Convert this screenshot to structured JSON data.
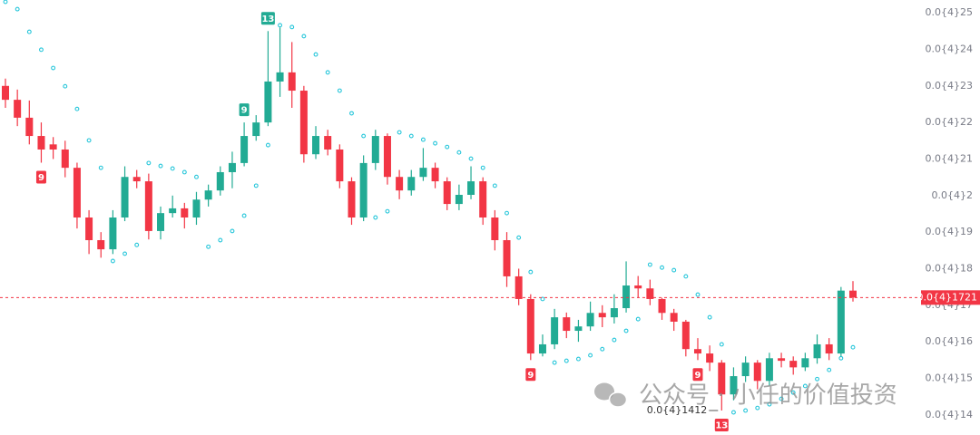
{
  "chart_data": {
    "type": "candlestick",
    "up_color": "#22ab94",
    "down_color": "#f23645",
    "sar_color": "#26c6da",
    "ylim": [
      1.345e-05,
      2.535e-05
    ],
    "yticks": [
      {
        "value": 2.5e-05,
        "label": "0.0{4}25"
      },
      {
        "value": 2.4e-05,
        "label": "0.0{4}24"
      },
      {
        "value": 2.3e-05,
        "label": "0.0{4}23"
      },
      {
        "value": 2.2e-05,
        "label": "0.0{4}22"
      },
      {
        "value": 2.1e-05,
        "label": "0.0{4}21"
      },
      {
        "value": 2e-05,
        "label": "0.0{4}2"
      },
      {
        "value": 1.9e-05,
        "label": "0.0{4}19"
      },
      {
        "value": 1.8e-05,
        "label": "0.0{4}18"
      },
      {
        "value": 1.7e-05,
        "label": "0.0{4}17"
      },
      {
        "value": 1.6e-05,
        "label": "0.0{4}16"
      },
      {
        "value": 1.5e-05,
        "label": "0.0{4}15"
      },
      {
        "value": 1.4e-05,
        "label": "0.0{4}14"
      }
    ],
    "ohlc": [
      [
        2.3e-05,
        2.32e-05,
        2.24e-05,
        2.262e-05
      ],
      [
        2.262e-05,
        2.29e-05,
        2.19e-05,
        2.213e-05
      ],
      [
        2.213e-05,
        2.26e-05,
        2.14e-05,
        2.163e-05
      ],
      [
        2.163e-05,
        2.2e-05,
        2.09e-05,
        2.126e-05
      ],
      [
        2.14e-05,
        2.16e-05,
        2.1e-05,
        2.126e-05
      ],
      [
        2.126e-05,
        2.15e-05,
        2.05e-05,
        2.076e-05
      ],
      [
        2.076e-05,
        2.09e-05,
        1.91e-05,
        1.94e-05
      ],
      [
        1.94e-05,
        1.96e-05,
        1.84e-05,
        1.878e-05
      ],
      [
        1.878e-05,
        1.9e-05,
        1.83e-05,
        1.853e-05
      ],
      [
        1.853e-05,
        1.96e-05,
        1.84e-05,
        1.94e-05
      ],
      [
        1.94e-05,
        2.08e-05,
        1.93e-05,
        2.051e-05
      ],
      [
        2.051e-05,
        2.07e-05,
        2.02e-05,
        2.039e-05
      ],
      [
        2.039e-05,
        2.06e-05,
        1.88e-05,
        1.903e-05
      ],
      [
        1.903e-05,
        1.97e-05,
        1.88e-05,
        1.952e-05
      ],
      [
        1.952e-05,
        2e-05,
        1.94e-05,
        1.965e-05
      ],
      [
        1.965e-05,
        1.98e-05,
        1.91e-05,
        1.94e-05
      ],
      [
        1.94e-05,
        2.01e-05,
        1.92e-05,
        1.989e-05
      ],
      [
        1.989e-05,
        2.03e-05,
        1.97e-05,
        2.014e-05
      ],
      [
        2.014e-05,
        2.08e-05,
        2e-05,
        2.064e-05
      ],
      [
        2.064e-05,
        2.12e-05,
        2.02e-05,
        2.089e-05
      ],
      [
        2.089e-05,
        2.2e-05,
        2.08e-05,
        2.163e-05
      ],
      [
        2.163e-05,
        2.22e-05,
        2.15e-05,
        2.2e-05
      ],
      [
        2.2e-05,
        2.45e-05,
        2.19e-05,
        2.312e-05
      ],
      [
        2.312e-05,
        2.46e-05,
        2.27e-05,
        2.337e-05
      ],
      [
        2.337e-05,
        2.42e-05,
        2.24e-05,
        2.287e-05
      ],
      [
        2.287e-05,
        2.3e-05,
        2.09e-05,
        2.113e-05
      ],
      [
        2.113e-05,
        2.19e-05,
        2.1e-05,
        2.163e-05
      ],
      [
        2.163e-05,
        2.18e-05,
        2.11e-05,
        2.126e-05
      ],
      [
        2.126e-05,
        2.14e-05,
        2.02e-05,
        2.039e-05
      ],
      [
        2.039e-05,
        2.05e-05,
        1.92e-05,
        1.94e-05
      ],
      [
        1.94e-05,
        2.11e-05,
        1.93e-05,
        2.089e-05
      ],
      [
        2.089e-05,
        2.18e-05,
        2.07e-05,
        2.163e-05
      ],
      [
        2.163e-05,
        2.17e-05,
        2.03e-05,
        2.051e-05
      ],
      [
        2.051e-05,
        2.07e-05,
        1.99e-05,
        2.014e-05
      ],
      [
        2.014e-05,
        2.07e-05,
        2e-05,
        2.051e-05
      ],
      [
        2.051e-05,
        2.13e-05,
        2.04e-05,
        2.076e-05
      ],
      [
        2.076e-05,
        2.09e-05,
        2.02e-05,
        2.039e-05
      ],
      [
        2.039e-05,
        2.05e-05,
        1.96e-05,
        1.977e-05
      ],
      [
        1.977e-05,
        2.03e-05,
        1.96e-05,
        2.002e-05
      ],
      [
        2.002e-05,
        2.08e-05,
        1.99e-05,
        2.039e-05
      ],
      [
        2.039e-05,
        2.05e-05,
        1.92e-05,
        1.94e-05
      ],
      [
        1.94e-05,
        1.96e-05,
        1.85e-05,
        1.878e-05
      ],
      [
        1.878e-05,
        1.9e-05,
        1.75e-05,
        1.779e-05
      ],
      [
        1.779e-05,
        1.8e-05,
        1.7e-05,
        1.717e-05
      ],
      [
        1.717e-05,
        1.73e-05,
        1.55e-05,
        1.568e-05
      ],
      [
        1.568e-05,
        1.62e-05,
        1.56e-05,
        1.593e-05
      ],
      [
        1.593e-05,
        1.69e-05,
        1.58e-05,
        1.667e-05
      ],
      [
        1.667e-05,
        1.68e-05,
        1.61e-05,
        1.63e-05
      ],
      [
        1.63e-05,
        1.66e-05,
        1.6e-05,
        1.642e-05
      ],
      [
        1.642e-05,
        1.71e-05,
        1.63e-05,
        1.679e-05
      ],
      [
        1.679e-05,
        1.7e-05,
        1.64e-05,
        1.667e-05
      ],
      [
        1.667e-05,
        1.73e-05,
        1.65e-05,
        1.692e-05
      ],
      [
        1.692e-05,
        1.82e-05,
        1.68e-05,
        1.754e-05
      ],
      [
        1.754e-05,
        1.78e-05,
        1.72e-05,
        1.746e-05
      ],
      [
        1.746e-05,
        1.77e-05,
        1.7e-05,
        1.717e-05
      ],
      [
        1.717e-05,
        1.72e-05,
        1.66e-05,
        1.679e-05
      ],
      [
        1.679e-05,
        1.69e-05,
        1.63e-05,
        1.655e-05
      ],
      [
        1.655e-05,
        1.66e-05,
        1.56e-05,
        1.58e-05
      ],
      [
        1.58e-05,
        1.61e-05,
        1.55e-05,
        1.568e-05
      ],
      [
        1.568e-05,
        1.59e-05,
        1.52e-05,
        1.543e-05
      ],
      [
        1.543e-05,
        1.55e-05,
        1.412e-05,
        1.456e-05
      ],
      [
        1.456e-05,
        1.53e-05,
        1.44e-05,
        1.506e-05
      ],
      [
        1.506e-05,
        1.56e-05,
        1.49e-05,
        1.543e-05
      ],
      [
        1.543e-05,
        1.55e-05,
        1.47e-05,
        1.493e-05
      ],
      [
        1.493e-05,
        1.57e-05,
        1.48e-05,
        1.555e-05
      ],
      [
        1.555e-05,
        1.57e-05,
        1.53e-05,
        1.548e-05
      ],
      [
        1.548e-05,
        1.56e-05,
        1.51e-05,
        1.53e-05
      ],
      [
        1.53e-05,
        1.57e-05,
        1.52e-05,
        1.555e-05
      ],
      [
        1.555e-05,
        1.62e-05,
        1.54e-05,
        1.593e-05
      ],
      [
        1.593e-05,
        1.61e-05,
        1.55e-05,
        1.568e-05
      ],
      [
        1.568e-05,
        1.75e-05,
        1.56e-05,
        1.74e-05
      ],
      [
        1.74e-05,
        1.766e-05,
        1.71e-05,
        1.721e-05
      ]
    ],
    "sar": [
      2.53e-05,
      2.51e-05,
      2.448e-05,
      2.399e-05,
      2.349e-05,
      2.299e-05,
      2.237e-05,
      2.151e-05,
      2.076e-05,
      1.821e-05,
      1.841e-05,
      1.865e-05,
      2.089e-05,
      2.081e-05,
      2.074e-05,
      2.064e-05,
      2.051e-05,
      1.86e-05,
      1.878e-05,
      1.903e-05,
      1.945e-05,
      2.027e-05,
      2.138e-05,
      2.466e-05,
      2.461e-05,
      2.436e-05,
      2.386e-05,
      2.337e-05,
      2.287e-05,
      2.225e-05,
      2.163e-05,
      1.94e-05,
      1.957e-05,
      2.173e-05,
      2.163e-05,
      2.153e-05,
      2.143e-05,
      2.133e-05,
      2.118e-05,
      2.101e-05,
      2.076e-05,
      2.027e-05,
      1.952e-05,
      1.885e-05,
      1.791e-05,
      1.717e-05,
      1.543e-05,
      1.548e-05,
      1.553e-05,
      1.563e-05,
      1.58e-05,
      1.605e-05,
      1.63e-05,
      1.662e-05,
      1.811e-05,
      1.803e-05,
      1.796e-05,
      1.779e-05,
      1.729e-05,
      1.667e-05,
      1.593e-05,
      1.407e-05,
      1.412e-05,
      1.419e-05,
      1.429e-05,
      1.444e-05,
      1.461e-05,
      1.479e-05,
      1.498e-05,
      1.523e-05,
      1.555e-05,
      1.585e-05
    ],
    "markers": [
      {
        "index": 3,
        "label": 9,
        "position": "below",
        "color": "#f23645"
      },
      {
        "index": 20,
        "label": 9,
        "position": "above",
        "color": "#22ab94"
      },
      {
        "index": 22,
        "label": 13,
        "position": "above",
        "color": "#22ab94"
      },
      {
        "index": 44,
        "label": 9,
        "position": "below",
        "color": "#f23645"
      },
      {
        "index": 58,
        "label": 9,
        "position": "below",
        "color": "#f23645"
      },
      {
        "index": 60,
        "label": 13,
        "position": "below",
        "color": "#f23645"
      }
    ],
    "last_price": {
      "value": 1.721e-05,
      "label": "0.0{4}1721"
    },
    "low_label": {
      "value": 1.412e-05,
      "label": "0.0{4}1412"
    },
    "watermark": "公众号 · 小任的价值投资"
  }
}
